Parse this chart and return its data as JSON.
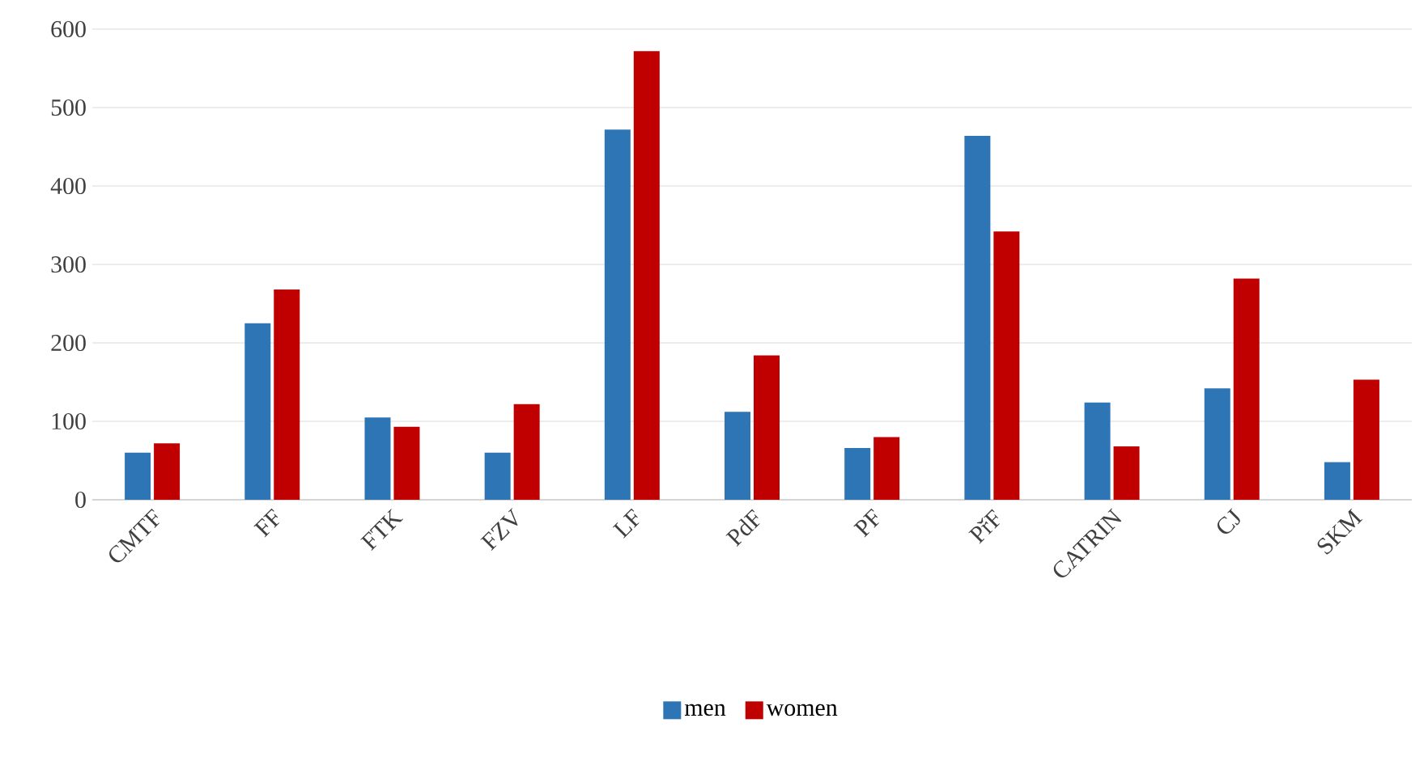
{
  "chart_data": {
    "type": "bar",
    "categories": [
      "CMTF",
      "FF",
      "FTK",
      "FZV",
      "LF",
      "PdF",
      "PF",
      "PřF",
      "CATRIN",
      "CJ",
      "SKM"
    ],
    "series": [
      {
        "name": "men",
        "color": "#2e75b6",
        "values": [
          60,
          225,
          105,
          60,
          472,
          112,
          66,
          464,
          124,
          142,
          48
        ]
      },
      {
        "name": "women",
        "color": "#c00000",
        "values": [
          72,
          268,
          93,
          122,
          572,
          184,
          80,
          342,
          68,
          282,
          153
        ]
      }
    ],
    "ylim": [
      0,
      600
    ],
    "yticks": [
      0,
      100,
      200,
      300,
      400,
      500,
      600
    ],
    "grid": "y",
    "legend": "bottom"
  }
}
